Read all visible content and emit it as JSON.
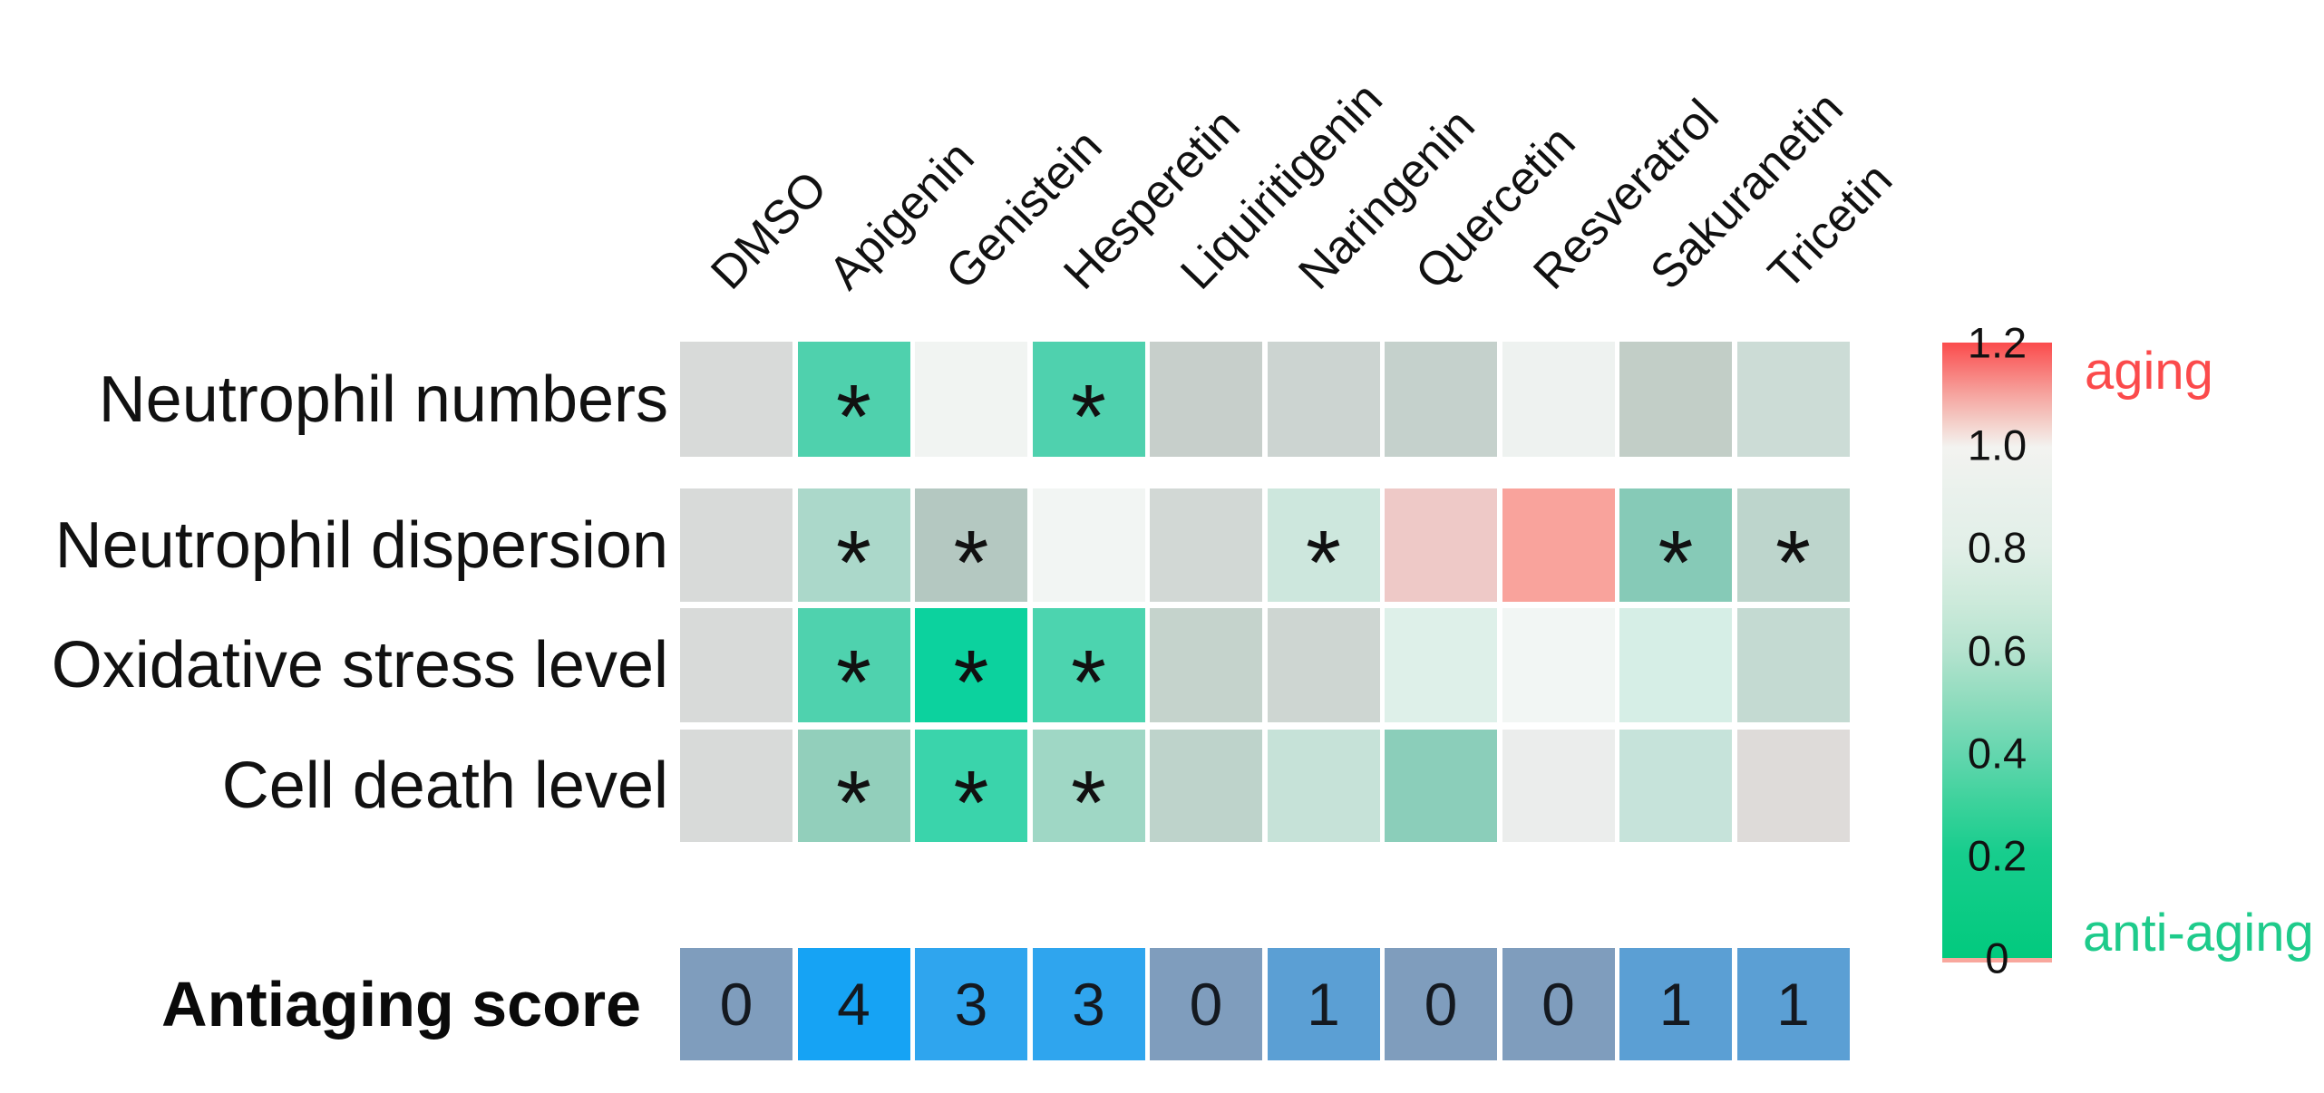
{
  "chart_data": {
    "type": "heatmap",
    "title": "",
    "significance_symbol": "*",
    "columns": [
      "DMSO",
      "Apigenin",
      "Genistein",
      "Hesperetin",
      "Liquiritigenin",
      "Naringenin",
      "Quercetin",
      "Resveratrol",
      "Sakuranetin",
      "Tricetin"
    ],
    "rows": [
      {
        "label": "Neutrophil numbers",
        "values": [
          1.0,
          0.35,
          0.95,
          0.35,
          0.88,
          0.9,
          0.86,
          0.95,
          0.85,
          0.8
        ],
        "colors": [
          "#d8dad9",
          "#4fd1ad",
          "#f1f4f2",
          "#4fd1ae",
          "#c7cfcb",
          "#ccd4d1",
          "#c5d1cc",
          "#eef2f0",
          "#c2cec7",
          "#ccdcd6"
        ],
        "significant": [
          false,
          true,
          false,
          true,
          false,
          false,
          false,
          false,
          false,
          false
        ]
      },
      {
        "label": "Neutrophil dispersion",
        "values": [
          1.0,
          0.66,
          0.78,
          0.96,
          0.9,
          0.72,
          1.08,
          1.15,
          0.58,
          0.76
        ],
        "colors": [
          "#d8dad9",
          "#abd8ca",
          "#b4c8c1",
          "#f2f5f3",
          "#d2d8d5",
          "#cde7dd",
          "#eec9c7",
          "#f9a39c",
          "#86cab7",
          "#bdd5cc"
        ],
        "significant": [
          false,
          true,
          true,
          false,
          false,
          true,
          false,
          false,
          true,
          true
        ]
      },
      {
        "label": "Oxidative stress level",
        "values": [
          1.0,
          0.34,
          0.15,
          0.34,
          0.85,
          0.88,
          0.78,
          0.95,
          0.76,
          0.8
        ],
        "colors": [
          "#d8dad9",
          "#4fd2ae",
          "#0cd29e",
          "#4cd4af",
          "#c5d3cc",
          "#ced6d2",
          "#def0e9",
          "#f2f6f4",
          "#d6eee6",
          "#c4dad2"
        ],
        "significant": [
          false,
          true,
          true,
          true,
          false,
          false,
          false,
          false,
          false,
          false
        ]
      },
      {
        "label": "Cell death level",
        "values": [
          1.0,
          0.56,
          0.28,
          0.6,
          0.8,
          0.72,
          0.55,
          0.97,
          0.72,
          1.0
        ],
        "colors": [
          "#d8dad9",
          "#92cfbb",
          "#3ad4ab",
          "#9fd7c5",
          "#bed3cb",
          "#c6e2d8",
          "#8bceba",
          "#ebedec",
          "#c6e3da",
          "#dedbd9"
        ],
        "significant": [
          false,
          true,
          true,
          true,
          false,
          false,
          false,
          false,
          false,
          false
        ]
      }
    ],
    "score_row": {
      "label": "Antiaging score",
      "values": [
        0,
        4,
        3,
        3,
        0,
        1,
        0,
        0,
        1,
        1
      ],
      "colors": [
        "#7f9dbd",
        "#16a3f4",
        "#2fa5ee",
        "#2fa5ee",
        "#7f9dbd",
        "#5b9fd4",
        "#7f9dbd",
        "#7f9dbd",
        "#5b9fd4",
        "#5b9fd4"
      ]
    },
    "colorbar": {
      "range": [
        0,
        1.2
      ],
      "tick_labels": [
        "1.2",
        "1.0",
        "0.8",
        "0.6",
        "0.4",
        "0.2",
        "0"
      ],
      "tick_values": [
        1.2,
        1.0,
        0.8,
        0.6,
        0.4,
        0.2,
        0
      ],
      "top_label": "aging",
      "bottom_label": "anti-aging",
      "top_label_color": "#fb4a4b",
      "bottom_label_color": "#1ecb8b",
      "bottom_edge_color": "#f8a79d",
      "gradient_stops": [
        {
          "pos": 0,
          "color": "#fb4b4c"
        },
        {
          "pos": 8,
          "color": "#f6a09b"
        },
        {
          "pos": 13,
          "color": "#f4cfc9"
        },
        {
          "pos": 17,
          "color": "#f3f3f0"
        },
        {
          "pos": 25,
          "color": "#e9f1ec"
        },
        {
          "pos": 33,
          "color": "#e2efe8"
        },
        {
          "pos": 42,
          "color": "#cdeadb"
        },
        {
          "pos": 50,
          "color": "#b5e3cf"
        },
        {
          "pos": 58,
          "color": "#90dcbe"
        },
        {
          "pos": 67,
          "color": "#63d6ae"
        },
        {
          "pos": 75,
          "color": "#3bd29b"
        },
        {
          "pos": 83,
          "color": "#17cd8d"
        },
        {
          "pos": 100,
          "color": "#02ca7e"
        }
      ]
    }
  }
}
